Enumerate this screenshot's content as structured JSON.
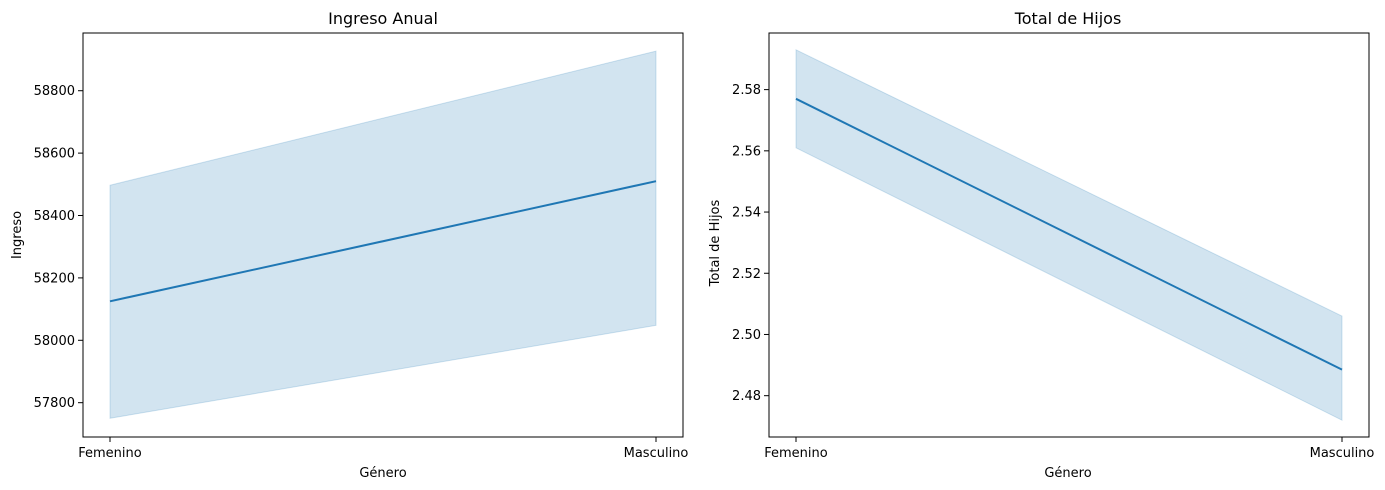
{
  "chart_data": [
    {
      "type": "line",
      "title": "Ingreso Anual",
      "xlabel": "Género",
      "ylabel": "Ingreso",
      "categories": [
        "Femenino",
        "Masculino"
      ],
      "yticks": [
        57800,
        58000,
        58200,
        58400,
        58600,
        58800
      ],
      "ylim": [
        57690,
        58985
      ],
      "series": [
        {
          "values": [
            58125,
            58510
          ],
          "ci_low": [
            57750,
            58048
          ],
          "ci_high": [
            58497,
            58927
          ],
          "color": "#1f77b4"
        }
      ]
    },
    {
      "type": "line",
      "title": "Total de Hijos",
      "xlabel": "Género",
      "ylabel": "Total de Hijos",
      "categories": [
        "Femenino",
        "Masculino"
      ],
      "yticks": [
        2.48,
        2.5,
        2.52,
        2.54,
        2.56,
        2.58
      ],
      "ylim": [
        2.4665,
        2.5985
      ],
      "series": [
        {
          "values": [
            2.577,
            2.4885
          ],
          "ci_low": [
            2.561,
            2.472
          ],
          "ci_high": [
            2.593,
            2.506
          ],
          "color": "#1f77b4"
        }
      ]
    }
  ]
}
